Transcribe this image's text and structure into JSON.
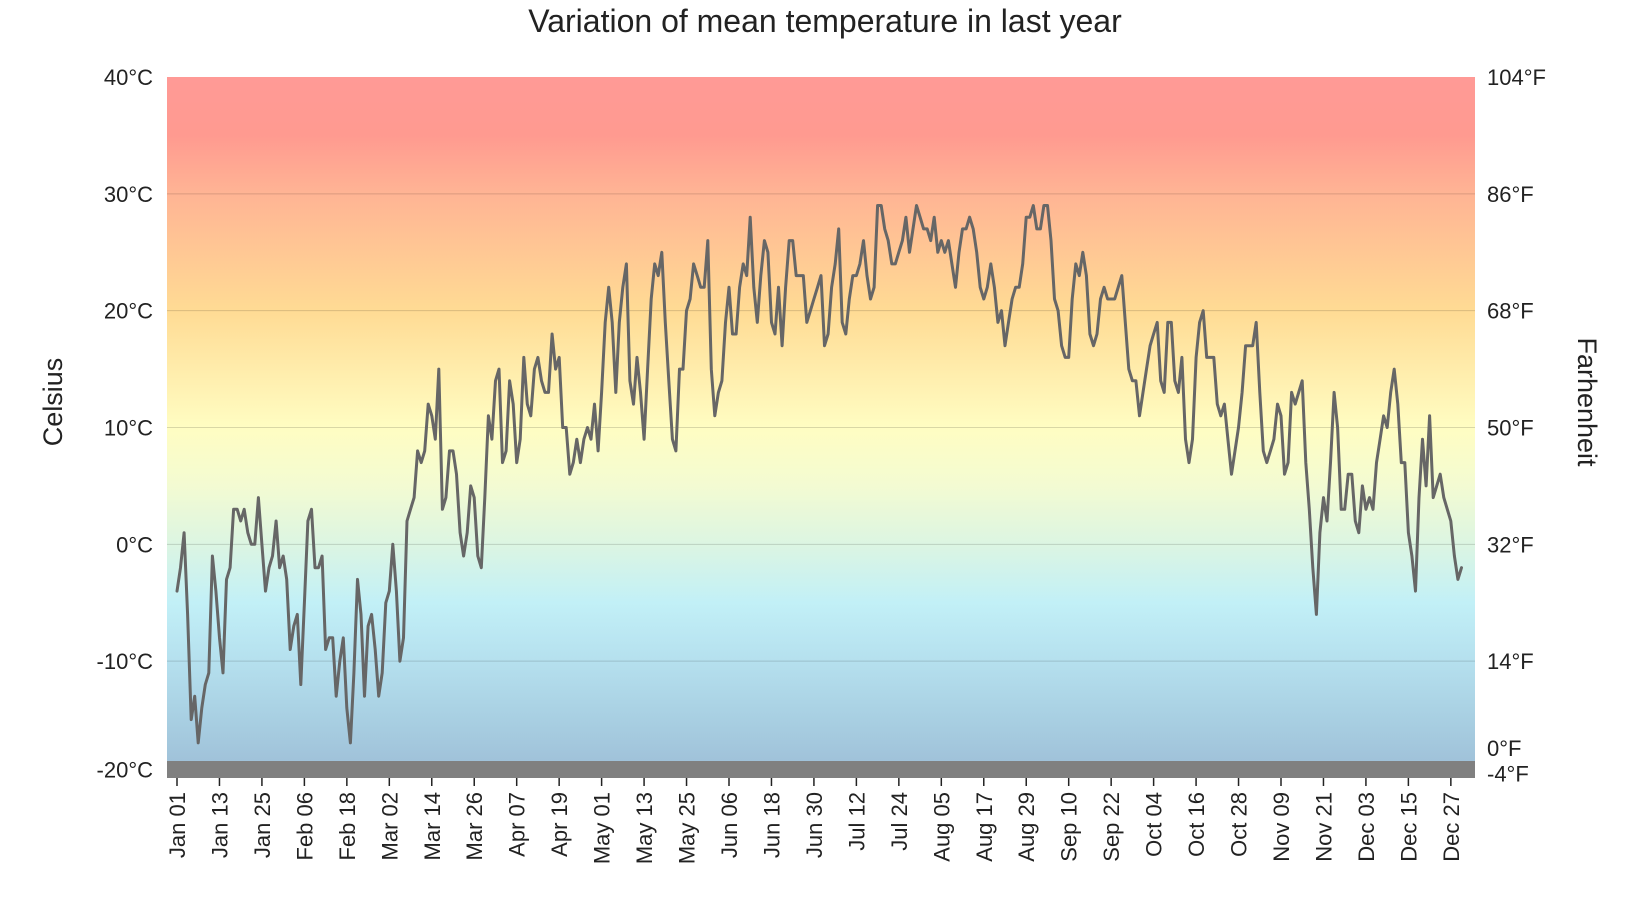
{
  "chart_data": {
    "type": "line",
    "title": "Variation of mean temperature in last year",
    "y_left_label": "Celsius",
    "y_right_label": "Farhenheit",
    "ylim": [
      -20,
      40
    ],
    "left_ticks": [
      {
        "value": 40,
        "label": "40°C"
      },
      {
        "value": 30,
        "label": "30°C"
      },
      {
        "value": 20,
        "label": "20°C"
      },
      {
        "value": 10,
        "label": "10°C"
      },
      {
        "value": 0,
        "label": "0°C"
      },
      {
        "value": -10,
        "label": "-10°C"
      },
      {
        "value": -20,
        "label": "-20°C"
      }
    ],
    "right_ticks": [
      {
        "value": 40,
        "label": "104°F"
      },
      {
        "value": 30,
        "label": "86°F"
      },
      {
        "value": 20,
        "label": "68°F"
      },
      {
        "value": 10,
        "label": "50°F"
      },
      {
        "value": 0,
        "label": "32°F"
      },
      {
        "value": -10,
        "label": "14°F"
      },
      {
        "value": -17.78,
        "label": "0°F"
      },
      {
        "value": -20,
        "label": "-4°F"
      }
    ],
    "x_ticks": [
      "Jan 01",
      "Jan 13",
      "Jan 25",
      "Feb 06",
      "Feb 18",
      "Mar 02",
      "Mar 14",
      "Mar 26",
      "Apr 07",
      "Apr 19",
      "May 01",
      "May 13",
      "May 25",
      "Jun 06",
      "Jun 18",
      "Jun 30",
      "Jul 12",
      "Jul 24",
      "Aug 05",
      "Aug 17",
      "Aug 29",
      "Sep 10",
      "Sep 22",
      "Oct 04",
      "Oct 16",
      "Oct 28",
      "Nov 09",
      "Nov 21",
      "Dec 03",
      "Dec 15",
      "Dec 27"
    ],
    "tick_interval_days": 12,
    "x_range_days": 365,
    "color_bands": [
      {
        "value": 40,
        "color": "#ff9a96"
      },
      {
        "value": 35,
        "color": "#ff9a90"
      },
      {
        "value": 30,
        "color": "#ffb494"
      },
      {
        "value": 20,
        "color": "#ffdb94"
      },
      {
        "value": 10,
        "color": "#fffdc2"
      },
      {
        "value": 5,
        "color": "#f3fbd2"
      },
      {
        "value": 0,
        "color": "#dcf5e2"
      },
      {
        "value": -5,
        "color": "#c2f0f7"
      },
      {
        "value": -10,
        "color": "#b5e0ee"
      },
      {
        "value": -15,
        "color": "#a8cfe2"
      },
      {
        "value": -20,
        "color": "#9dbdd6"
      }
    ],
    "floor_color": "#808080",
    "line_color": "#666666",
    "grid": true,
    "series": [
      {
        "values": [
          -4,
          -2,
          1,
          -6,
          -15,
          -13,
          -17,
          -14,
          -12,
          -11,
          -1,
          -4,
          -8,
          -11,
          -3,
          -2,
          3,
          3,
          2,
          3,
          1,
          0,
          0,
          4,
          0,
          -4,
          -2,
          -1,
          2,
          -2,
          -1,
          -3,
          -9,
          -7,
          -6,
          -12,
          -5,
          2,
          3,
          -2,
          -2,
          -1,
          -9,
          -8,
          -8,
          -13,
          -10,
          -8,
          -14,
          -17,
          -11,
          -3,
          -6,
          -13,
          -7,
          -6,
          -9,
          -13,
          -11,
          -5,
          -4,
          0,
          -4,
          -10,
          -8,
          2,
          3,
          4,
          8,
          7,
          8,
          12,
          11,
          9,
          15,
          3,
          4,
          8,
          8,
          6,
          1,
          -1,
          1,
          5,
          4,
          -1,
          -2,
          4,
          11,
          9,
          14,
          15,
          7,
          8,
          14,
          12,
          7,
          9,
          16,
          12,
          11,
          15,
          16,
          14,
          13,
          13,
          18,
          15,
          16,
          10,
          10,
          6,
          7,
          9,
          7,
          9,
          10,
          9,
          12,
          8,
          13,
          19,
          22,
          19,
          13,
          19,
          22,
          24,
          14,
          12,
          16,
          13,
          9,
          15,
          21,
          24,
          23,
          25,
          19,
          14,
          9,
          8,
          15,
          15,
          20,
          21,
          24,
          23,
          22,
          22,
          26,
          15,
          11,
          13,
          14,
          19,
          22,
          18,
          18,
          22,
          24,
          23,
          28,
          22,
          19,
          23,
          26,
          25,
          19,
          18,
          22,
          17,
          22,
          26,
          26,
          23,
          23,
          23,
          19,
          20,
          21,
          22,
          23,
          17,
          18,
          22,
          24,
          27,
          19,
          18,
          21,
          23,
          23,
          24,
          26,
          23,
          21,
          22,
          29,
          29,
          27,
          26,
          24,
          24,
          25,
          26,
          28,
          25,
          27,
          29,
          28,
          27,
          27,
          26,
          28,
          25,
          26,
          25,
          26,
          24,
          22,
          25,
          27,
          27,
          28,
          27,
          25,
          22,
          21,
          22,
          24,
          22,
          19,
          20,
          17,
          19,
          21,
          22,
          22,
          24,
          28,
          28,
          29,
          27,
          27,
          29,
          29,
          26,
          21,
          20,
          17,
          16,
          16,
          21,
          24,
          23,
          25,
          23,
          18,
          17,
          18,
          21,
          22,
          21,
          21,
          21,
          22,
          23,
          19,
          15,
          14,
          14,
          11,
          13,
          15,
          17,
          18,
          19,
          14,
          13,
          19,
          19,
          14,
          13,
          16,
          9,
          7,
          9,
          16,
          19,
          20,
          16,
          16,
          16,
          12,
          11,
          12,
          9,
          6,
          8,
          10,
          13,
          17,
          17,
          17,
          19,
          13,
          8,
          7,
          8,
          9,
          12,
          11,
          6,
          7,
          13,
          12,
          13,
          14,
          7,
          3,
          -2,
          -6,
          1,
          4,
          2,
          7,
          13,
          10,
          3,
          3,
          6,
          6,
          2,
          1,
          5,
          3,
          4,
          3,
          7,
          9,
          11,
          10,
          13,
          15,
          12,
          7,
          7,
          1,
          -1,
          -4,
          4,
          9,
          5,
          11,
          4,
          5,
          6,
          4,
          3,
          2,
          -1,
          -3,
          -2
        ]
      }
    ]
  }
}
